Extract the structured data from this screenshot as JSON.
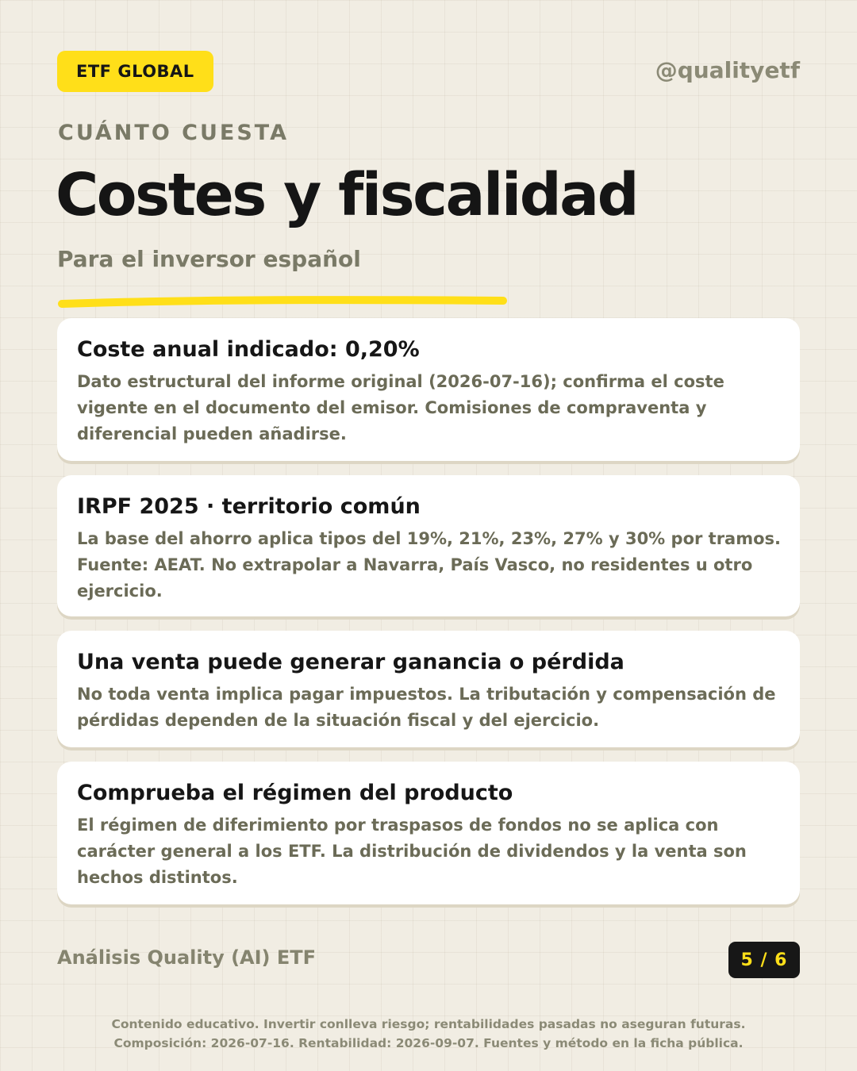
{
  "header": {
    "badge": "ETF GLOBAL",
    "handle": "@qualityetf"
  },
  "hero": {
    "eyebrow": "CUÁNTO CUESTA",
    "title": "Costes y fiscalidad",
    "subtitle": "Para el inversor español"
  },
  "cards": [
    {
      "title": "Coste anual indicado: 0,20%",
      "text": "Dato estructural del informe original (2026-07-16); confirma el coste vigente en el documento del emisor. Comisiones de compraventa y diferencial pueden añadirse."
    },
    {
      "title": "IRPF 2025 · territorio común",
      "text": "La base del ahorro aplica tipos del 19%, 21%, 23%, 27% y 30% por tramos. Fuente: AEAT. No extrapolar a Navarra, País Vasco, no residentes u otro ejercicio."
    },
    {
      "title": "Una venta puede generar ganancia o pérdida",
      "text": "No toda venta implica pagar impuestos. La tributación y compensación de pérdidas dependen de la situación fiscal y del ejercicio."
    },
    {
      "title": "Comprueba el régimen del producto",
      "text": "El régimen de diferimiento por traspasos de fondos no se aplica con carácter general a los ETF. La distribución de dividendos y la venta son hechos distintos."
    }
  ],
  "footer": {
    "brand": "Análisis Quality (AI) ETF",
    "page": "5 / 6",
    "disclaimer_line1": "Contenido educativo. Invertir conlleva riesgo; rentabilidades pasadas no aseguran futuras.",
    "disclaimer_line2": "Composición: 2026-07-16. Rentabilidad: 2026-09-07. Fuentes y método en la ficha pública."
  },
  "colors": {
    "background": "#f1ede3",
    "accent": "#ffdf19",
    "text_dark": "#171717",
    "text_muted": "#6b6b57"
  }
}
